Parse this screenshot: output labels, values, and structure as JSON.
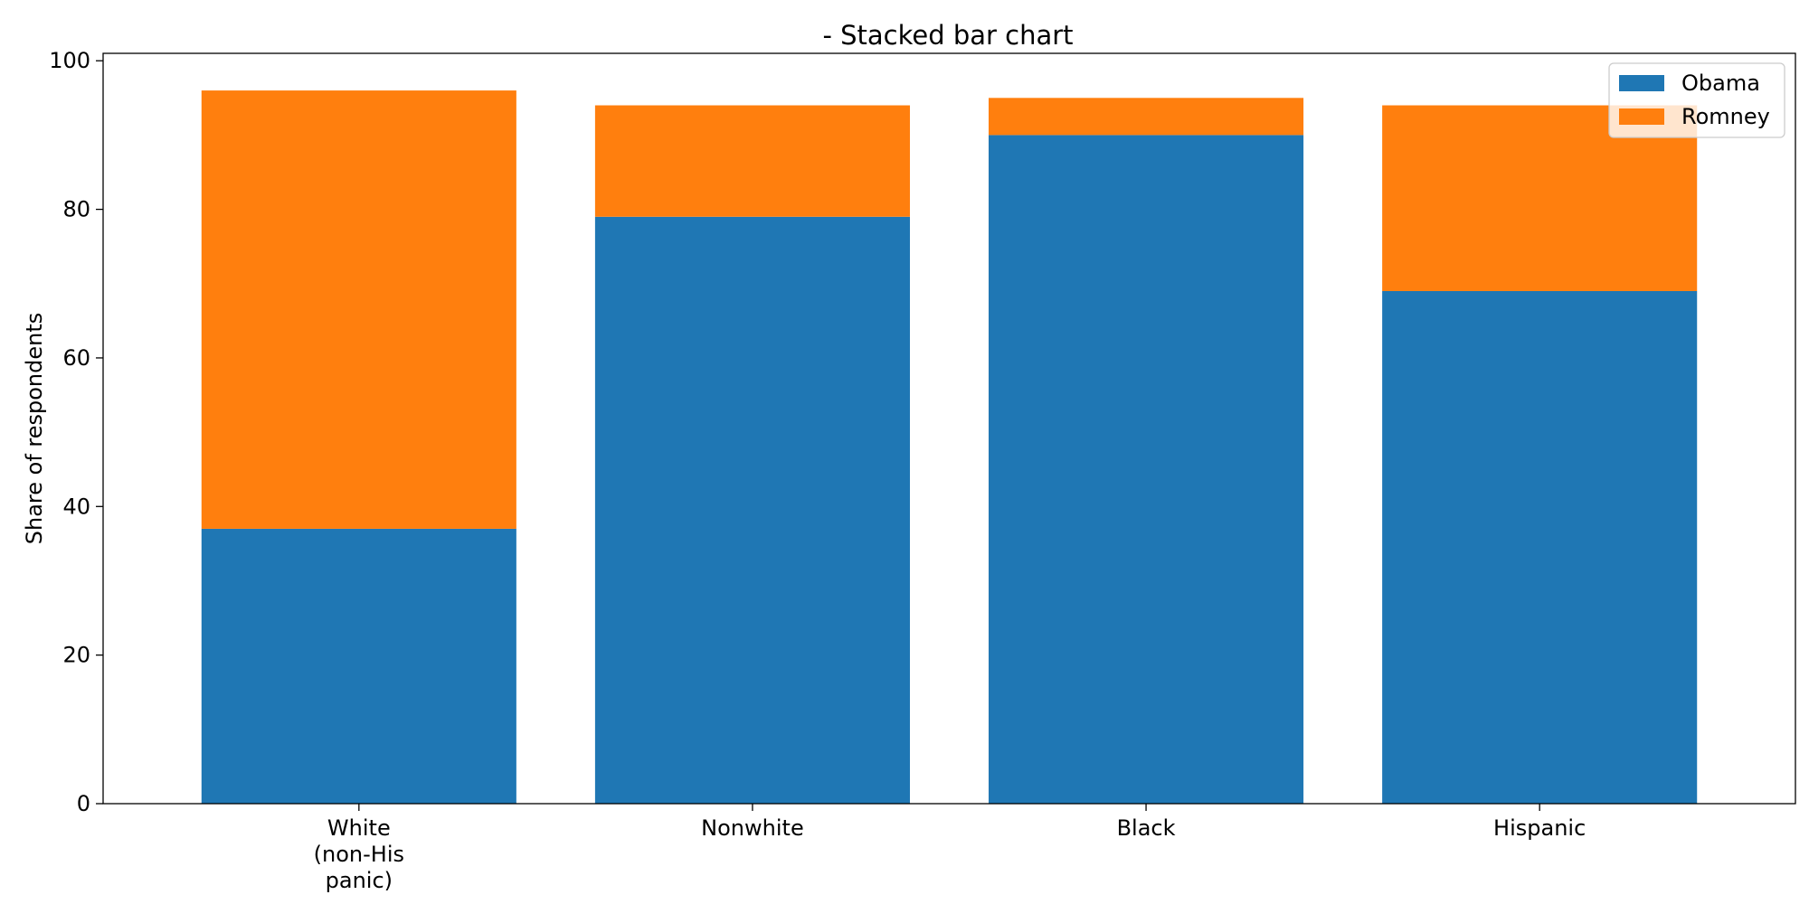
{
  "chart_data": {
    "type": "bar",
    "stacked": true,
    "title": "- Stacked bar chart",
    "xlabel": "",
    "ylabel": "Share of respondents",
    "categories": [
      [
        "White",
        "(non-His",
        "panic)"
      ],
      [
        "Nonwhite"
      ],
      [
        "Black"
      ],
      [
        "Hispanic"
      ]
    ],
    "series": [
      {
        "name": "Obama",
        "color": "#1f77b4",
        "values": [
          37,
          79,
          90,
          69
        ]
      },
      {
        "name": "Romney",
        "color": "#ff7f0e",
        "values": [
          59,
          15,
          5,
          25
        ]
      }
    ],
    "ylim": [
      0,
      101
    ],
    "yticks": [
      0,
      20,
      40,
      60,
      80,
      100
    ],
    "grid": false,
    "legend_position": "top-right"
  }
}
